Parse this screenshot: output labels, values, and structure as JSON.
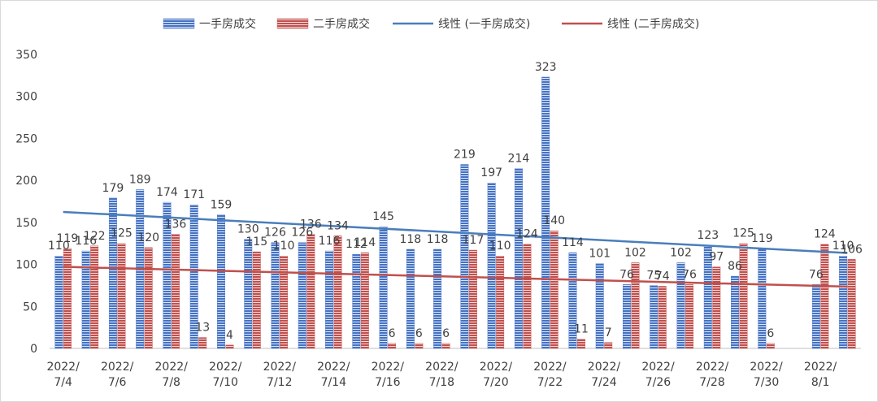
{
  "chart_data": {
    "type": "bar",
    "categories": [
      "2022/7/4",
      "2022/7/5",
      "2022/7/6",
      "2022/7/7",
      "2022/7/8",
      "2022/7/9",
      "2022/7/10",
      "2022/7/11",
      "2022/7/12",
      "2022/7/13",
      "2022/7/14",
      "2022/7/15",
      "2022/7/16",
      "2022/7/17",
      "2022/7/18",
      "2022/7/19",
      "2022/7/20",
      "2022/7/21",
      "2022/7/22",
      "2022/7/23",
      "2022/7/24",
      "2022/7/25",
      "2022/7/26",
      "2022/7/27",
      "2022/7/28",
      "2022/7/29",
      "2022/7/30",
      "2022/7/31",
      "2022/8/1",
      "2022/8/2"
    ],
    "x_tick_labels": [
      {
        "category": "2022/7/4",
        "line1": "2022/",
        "line2": "7/4"
      },
      {
        "category": "2022/7/6",
        "line1": "2022/",
        "line2": "7/6"
      },
      {
        "category": "2022/7/8",
        "line1": "2022/",
        "line2": "7/8"
      },
      {
        "category": "2022/7/10",
        "line1": "2022/",
        "line2": "7/10"
      },
      {
        "category": "2022/7/12",
        "line1": "2022/",
        "line2": "7/12"
      },
      {
        "category": "2022/7/14",
        "line1": "2022/",
        "line2": "7/14"
      },
      {
        "category": "2022/7/16",
        "line1": "2022/",
        "line2": "7/16"
      },
      {
        "category": "2022/7/18",
        "line1": "2022/",
        "line2": "7/18"
      },
      {
        "category": "2022/7/20",
        "line1": "2022/",
        "line2": "7/20"
      },
      {
        "category": "2022/7/22",
        "line1": "2022/",
        "line2": "7/22"
      },
      {
        "category": "2022/7/24",
        "line1": "2022/",
        "line2": "7/24"
      },
      {
        "category": "2022/7/26",
        "line1": "2022/",
        "line2": "7/26"
      },
      {
        "category": "2022/7/28",
        "line1": "2022/",
        "line2": "7/28"
      },
      {
        "category": "2022/7/30",
        "line1": "2022/",
        "line2": "7/30"
      },
      {
        "category": "2022/8/1",
        "line1": "2022/",
        "line2": "8/1"
      }
    ],
    "series": [
      {
        "name": "一手房成交",
        "color": "#4472c4",
        "values": [
          110,
          116,
          179,
          189,
          174,
          171,
          159,
          130,
          126,
          126,
          116,
          112,
          145,
          118,
          118,
          219,
          197,
          214,
          323,
          114,
          101,
          76,
          75,
          102,
          123,
          86,
          119,
          null,
          76,
          110
        ]
      },
      {
        "name": "二手房成交",
        "color": "#c0504d",
        "values": [
          119,
          122,
          125,
          120,
          136,
          13,
          4,
          115,
          110,
          136,
          134,
          114,
          6,
          6,
          6,
          117,
          110,
          124,
          140,
          11,
          7,
          102,
          74,
          76,
          97,
          125,
          6,
          null,
          124,
          106
        ]
      }
    ],
    "trendlines": [
      {
        "name": "线性 (一手房成交)",
        "color": "#4a7ebb",
        "series": "一手房成交"
      },
      {
        "name": "线性 (二手房成交)",
        "color": "#c0504d",
        "series": "二手房成交"
      }
    ],
    "title": "",
    "xlabel": "",
    "ylabel": "",
    "ylim": [
      0,
      350
    ],
    "yticks": [
      0,
      50,
      100,
      150,
      200,
      250,
      300,
      350
    ],
    "grid": false,
    "legend": "top",
    "data_labels": true
  }
}
